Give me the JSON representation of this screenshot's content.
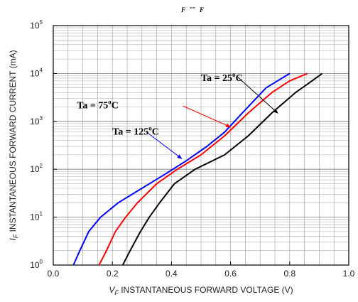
{
  "chart_data": {
    "type": "line",
    "title_left": "F",
    "title_dash": "--",
    "title_right": "F",
    "xlabel_prefix": "V",
    "xlabel_sub": "F",
    "xlabel_text": " INSTANTANEOUS FORWARD VOLTAGE (V)",
    "ylabel_prefix": "I",
    "ylabel_sub": "F",
    "ylabel_text": " INSTANTANEOUS FORWARD CURRENT (mA)",
    "xlim": [
      0.0,
      1.0
    ],
    "ylim_log10": [
      0,
      5
    ],
    "yscale": "log",
    "grid": true,
    "x_ticks": [
      "0.0",
      "0.2",
      "0.4",
      "0.6",
      "0.8",
      "1.0"
    ],
    "x_tick_values": [
      0.0,
      0.2,
      0.4,
      0.6,
      0.8,
      1.0
    ],
    "y_ticks": [
      {
        "base": "10",
        "exp": "0",
        "value": 1
      },
      {
        "base": "10",
        "exp": "1",
        "value": 10
      },
      {
        "base": "10",
        "exp": "2",
        "value": 100
      },
      {
        "base": "10",
        "exp": "3",
        "value": 1000
      },
      {
        "base": "10",
        "exp": "4",
        "value": 10000
      },
      {
        "base": "10",
        "exp": "5",
        "value": 100000
      }
    ],
    "series": [
      {
        "name": "Ta = 125°C",
        "color": "#0000ff",
        "points": [
          [
            0.068,
            1
          ],
          [
            0.09,
            2
          ],
          [
            0.12,
            5
          ],
          [
            0.16,
            10
          ],
          [
            0.22,
            20
          ],
          [
            0.3,
            40
          ],
          [
            0.38,
            80
          ],
          [
            0.45,
            150
          ],
          [
            0.52,
            300
          ],
          [
            0.58,
            600
          ],
          [
            0.64,
            1500
          ],
          [
            0.72,
            5000
          ],
          [
            0.8,
            10000
          ]
        ]
      },
      {
        "name": "Ta = 75°C",
        "color": "#ff0000",
        "points": [
          [
            0.155,
            1
          ],
          [
            0.18,
            2
          ],
          [
            0.21,
            5
          ],
          [
            0.245,
            10
          ],
          [
            0.285,
            20
          ],
          [
            0.35,
            50
          ],
          [
            0.42,
            100
          ],
          [
            0.5,
            200
          ],
          [
            0.58,
            500
          ],
          [
            0.66,
            1500
          ],
          [
            0.74,
            4000
          ],
          [
            0.8,
            7000
          ],
          [
            0.86,
            10000
          ]
        ]
      },
      {
        "name": "Ta = 25°C",
        "color": "#000000",
        "points": [
          [
            0.235,
            1
          ],
          [
            0.26,
            2
          ],
          [
            0.295,
            5
          ],
          [
            0.325,
            10
          ],
          [
            0.36,
            20
          ],
          [
            0.41,
            50
          ],
          [
            0.48,
            100
          ],
          [
            0.58,
            200
          ],
          [
            0.66,
            500
          ],
          [
            0.74,
            1500
          ],
          [
            0.82,
            4000
          ],
          [
            0.86,
            6000
          ],
          [
            0.91,
            10000
          ]
        ]
      }
    ],
    "annotations": [
      {
        "series": 0,
        "label": "Ta = 125",
        "deg": "o",
        "unit": "C",
        "text_x": 0.2,
        "text_log": 2.72,
        "arrow_from_x": 0.315,
        "arrow_from_log": 2.78,
        "arrow_to_x": 0.435,
        "arrow_to_log": 2.22
      },
      {
        "series": 1,
        "label": "Ta = 75",
        "deg": "o",
        "unit": "C",
        "text_x": 0.08,
        "text_log": 3.27,
        "arrow_from_x": 0.44,
        "arrow_from_log": 3.32,
        "arrow_to_x": 0.6,
        "arrow_to_log": 2.88
      },
      {
        "series": 2,
        "label": "Ta = 25",
        "deg": "o",
        "unit": "C",
        "text_x": 0.5,
        "text_log": 3.84,
        "arrow_from_x": 0.625,
        "arrow_from_log": 3.92,
        "arrow_to_x": 0.76,
        "arrow_to_log": 3.17
      }
    ]
  }
}
